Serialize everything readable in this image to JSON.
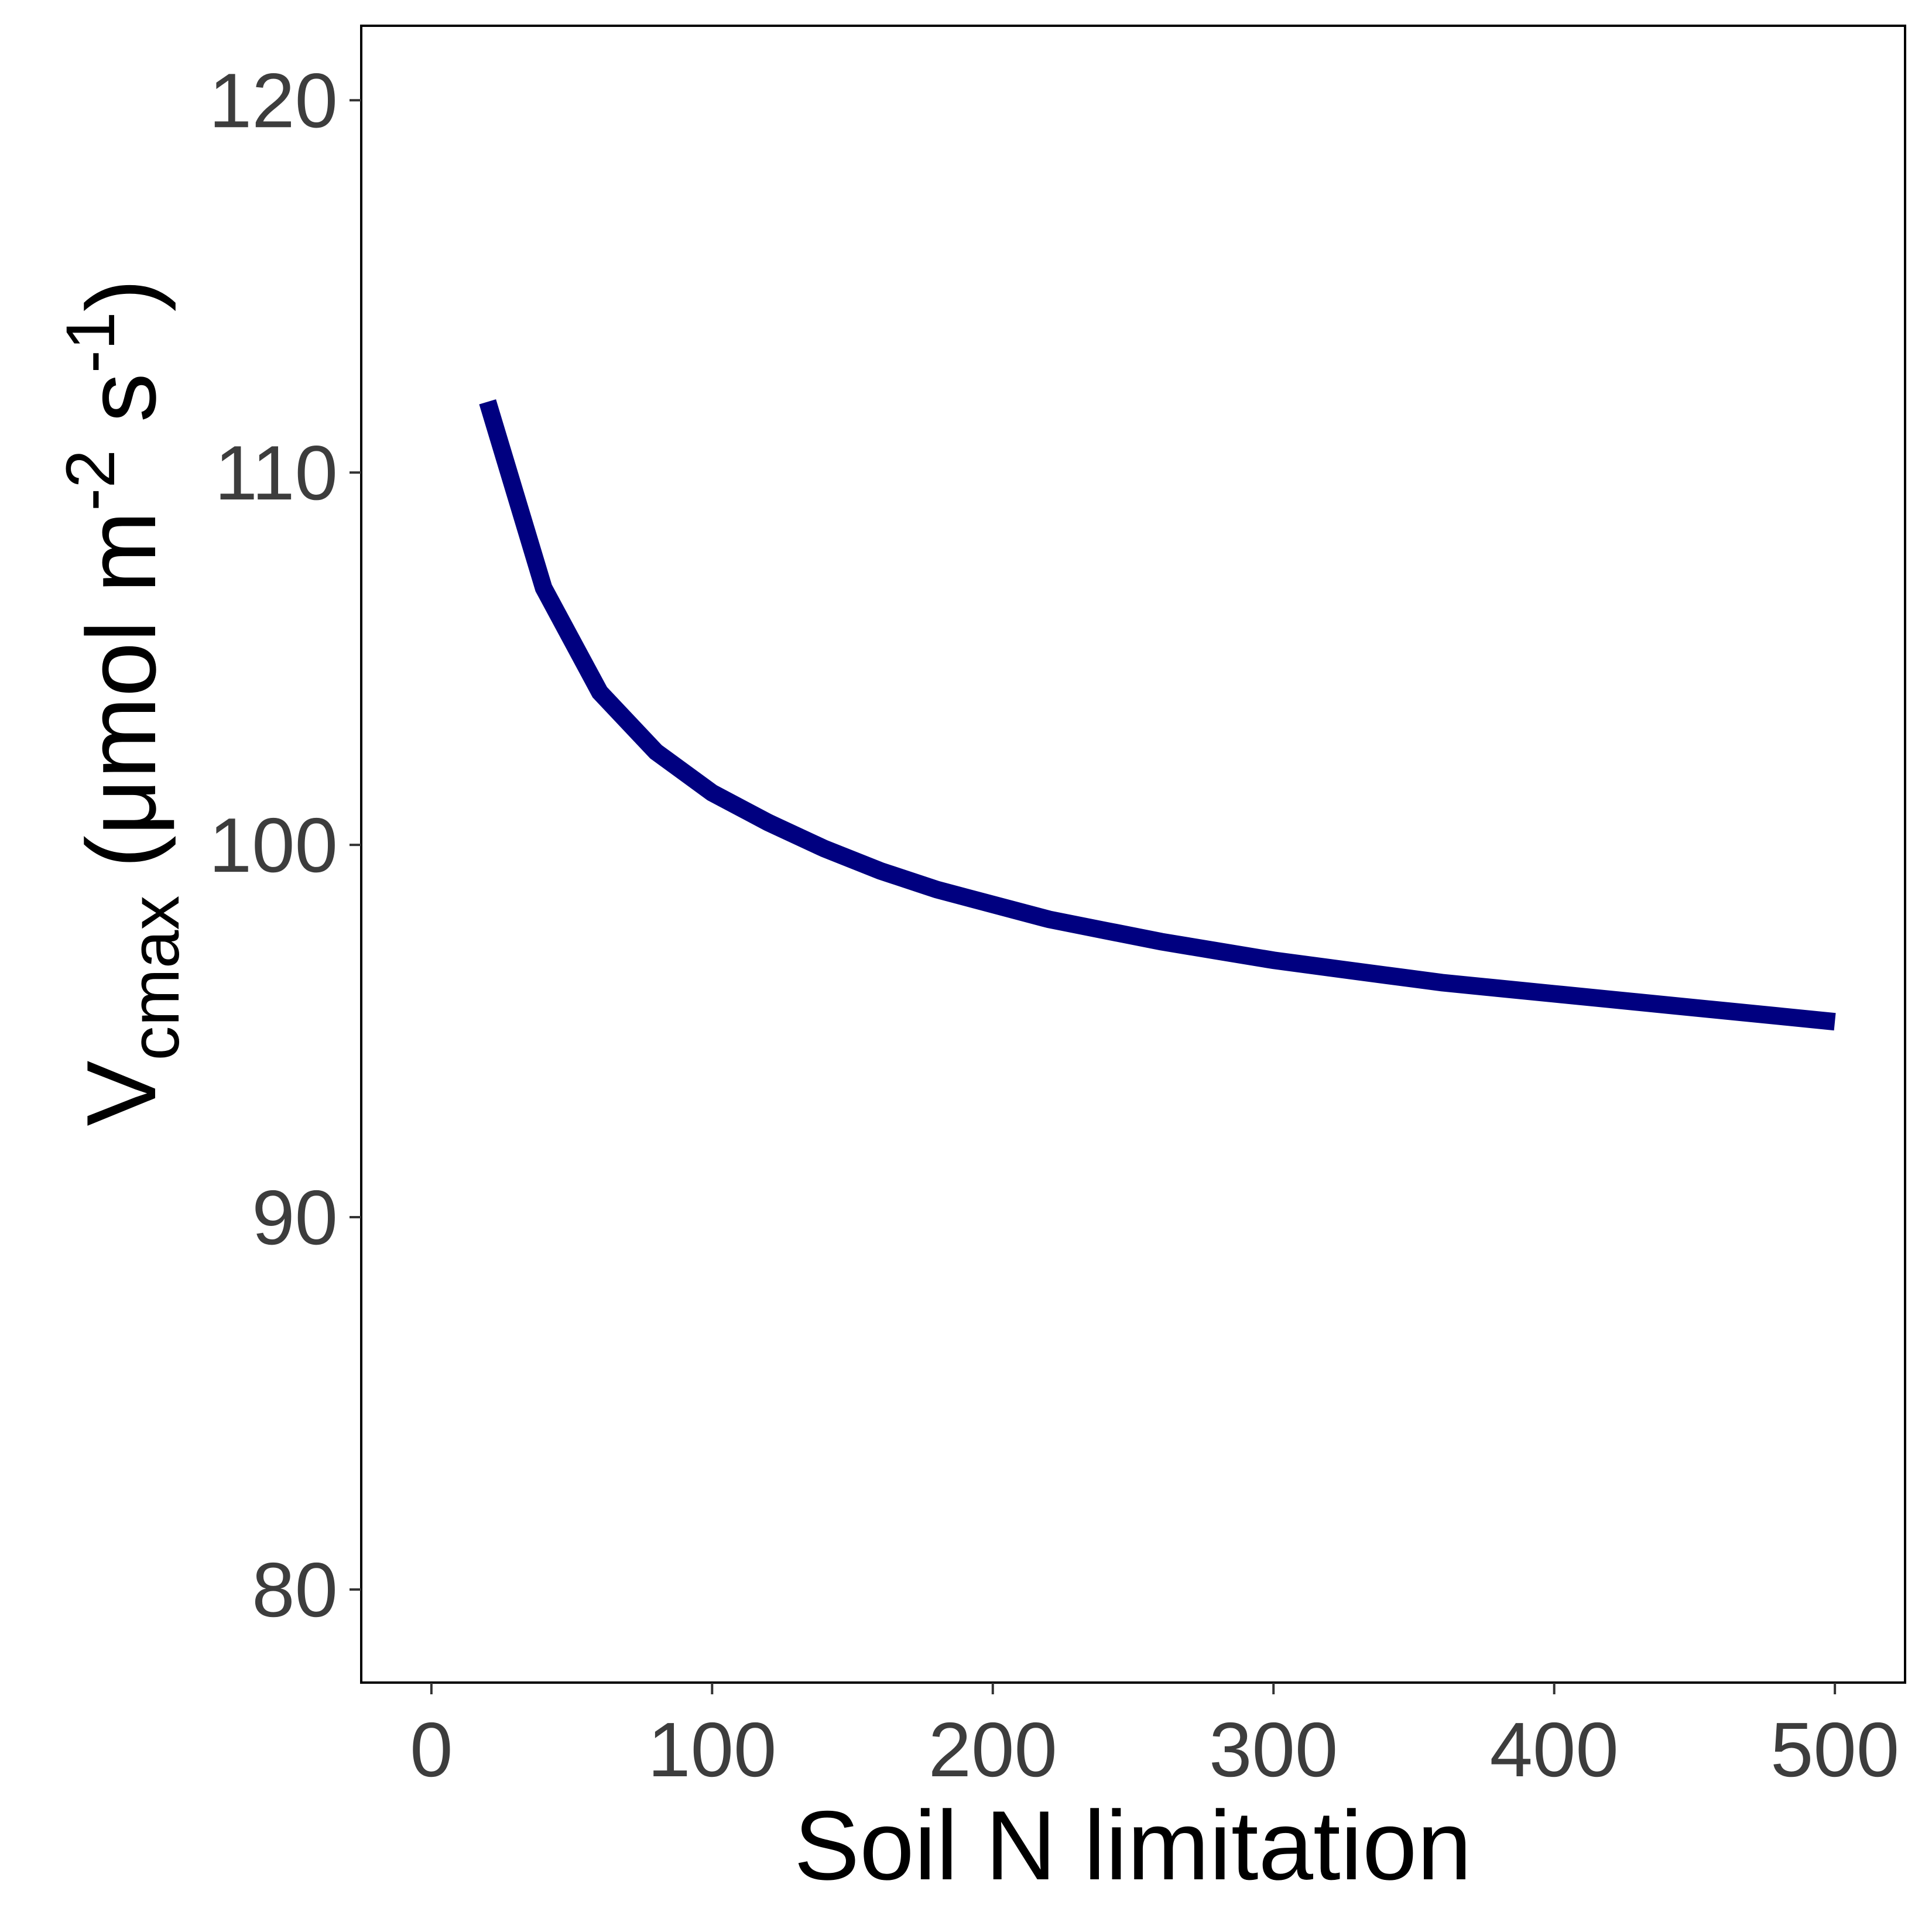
{
  "chart_data": {
    "type": "line",
    "title": "",
    "xlabel": "Soil N limitation",
    "ylabel": {
      "main": "V",
      "subscript": "cmax",
      "open": " (μmol m",
      "sup1": "-2",
      "mid": " s",
      "sup2": "-1",
      "close": ")"
    },
    "xlim": [
      -25,
      525
    ],
    "ylim": [
      77.5,
      122
    ],
    "x_ticks": [
      0,
      100,
      200,
      300,
      400,
      500
    ],
    "x_tick_labels": [
      "0",
      "100",
      "200",
      "300",
      "400",
      "500"
    ],
    "y_ticks": [
      80,
      90,
      100,
      110,
      120
    ],
    "y_tick_labels": [
      "80",
      "90",
      "100",
      "110",
      "120"
    ],
    "grid": false,
    "line_color": "#000080",
    "series": [
      {
        "x": [
          20,
          40,
          60,
          80,
          100,
          120,
          140,
          160,
          180,
          200,
          220,
          240,
          260,
          280,
          300,
          320,
          340,
          360,
          380,
          400,
          420,
          440,
          460,
          480,
          500
        ],
        "y": [
          111.9,
          106.9,
          104.1,
          102.5,
          101.4,
          100.6,
          99.9,
          99.3,
          98.8,
          98.4,
          98.0,
          97.7,
          97.4,
          97.15,
          96.9,
          96.7,
          96.5,
          96.3,
          96.15,
          96.0,
          95.85,
          95.7,
          95.55,
          95.4,
          95.25
        ]
      }
    ]
  }
}
